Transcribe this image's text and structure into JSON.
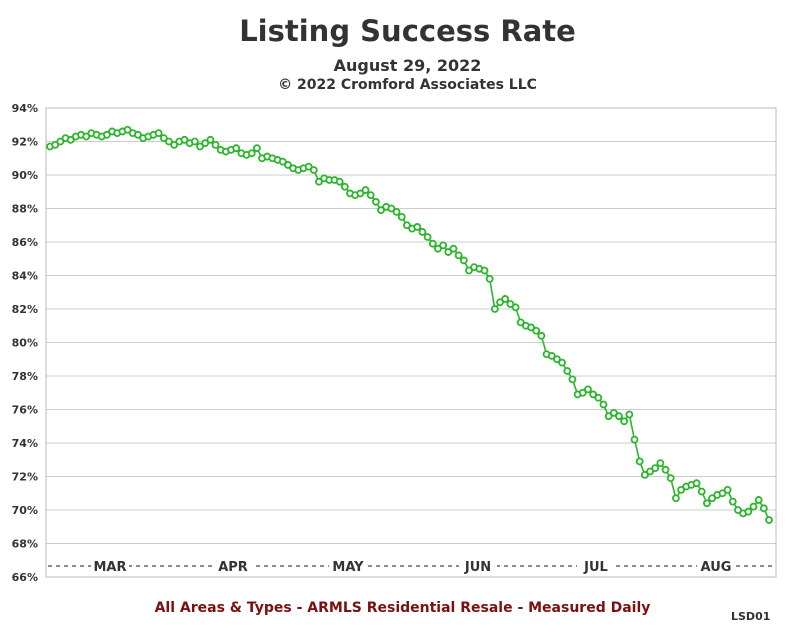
{
  "chart_data": {
    "type": "line",
    "title": "Listing Success Rate",
    "subtitle": "August 29, 2022",
    "copyright": "© 2022 Cromford Associates LLC",
    "footer": "All Areas & Types - ARMLS Residential Resale - Measured Daily",
    "chart_code": "LSD01",
    "ylim": [
      66,
      94
    ],
    "y_ticks": [
      66,
      68,
      70,
      72,
      74,
      76,
      78,
      80,
      82,
      84,
      86,
      88,
      90,
      92,
      94
    ],
    "y_tick_labels": [
      "66%",
      "68%",
      "70%",
      "72%",
      "74%",
      "76%",
      "78%",
      "80%",
      "82%",
      "84%",
      "86%",
      "88%",
      "90%",
      "92%",
      "94%"
    ],
    "months": [
      "MAR",
      "APR",
      "MAY",
      "JUN",
      "JUL",
      "AUG"
    ],
    "grid": true,
    "line_color": "#2db52d",
    "series": [
      {
        "values": [
          91.7,
          91.8,
          92.0,
          92.2,
          92.1,
          92.3,
          92.4,
          92.3,
          92.5,
          92.4,
          92.3,
          92.4,
          92.6,
          92.5,
          92.6,
          92.7,
          92.5,
          92.4,
          92.2,
          92.3,
          92.4,
          92.5,
          92.2,
          92.0,
          91.8,
          92.0,
          92.1,
          91.9,
          92.0,
          91.7,
          91.9,
          92.1,
          91.8,
          91.5,
          91.4,
          91.5,
          91.6,
          91.3,
          91.2,
          91.3,
          91.6,
          91.0,
          91.1,
          91.0,
          90.9,
          90.8,
          90.6,
          90.4,
          90.3,
          90.4,
          90.5,
          90.3,
          89.6,
          89.8,
          89.7,
          89.7,
          89.6,
          89.3,
          88.9,
          88.8,
          88.9,
          89.1,
          88.8,
          88.4,
          87.9,
          88.1,
          88.0,
          87.8,
          87.5,
          87.0,
          86.8,
          86.9,
          86.6,
          86.3,
          85.9,
          85.6,
          85.8,
          85.4,
          85.6,
          85.2,
          84.9,
          84.3,
          84.5,
          84.4,
          84.3,
          83.8,
          82.0,
          82.4,
          82.6,
          82.3,
          82.1,
          81.2,
          81.0,
          80.9,
          80.7,
          80.4,
          79.3,
          79.2,
          79.0,
          78.8,
          78.3,
          77.8,
          76.9,
          77.0,
          77.2,
          76.9,
          76.7,
          76.3,
          75.6,
          75.8,
          75.6,
          75.3,
          75.7,
          74.2,
          72.9,
          72.1,
          72.3,
          72.5,
          72.8,
          72.4,
          71.9,
          70.7,
          71.2,
          71.4,
          71.5,
          71.6,
          71.1,
          70.4,
          70.7,
          70.9,
          71.0,
          71.2,
          70.5,
          70.0,
          69.8,
          69.9,
          70.2,
          70.6,
          70.1,
          69.4
        ]
      }
    ]
  }
}
